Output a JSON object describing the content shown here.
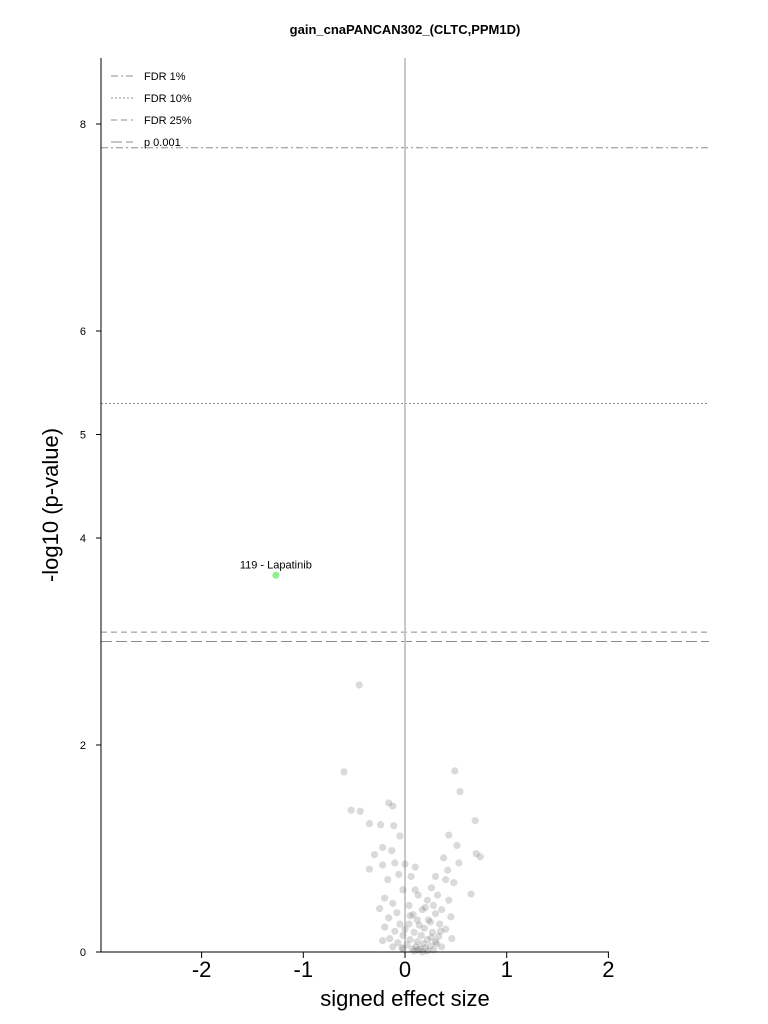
{
  "chart_data": {
    "type": "scatter",
    "title": "gain_cnaPANCAN302_(CLTC,PPM1D)",
    "xlabel": "signed effect size",
    "ylabel": "-log10 (p-value)",
    "xlim": [
      -2,
      2
    ],
    "ylim": [
      0,
      8
    ],
    "xticks": [
      -2,
      -1,
      0,
      1,
      2
    ],
    "xtick_labels": [
      "-2",
      "-1",
      "0",
      "1",
      "2"
    ],
    "yticks": [
      0,
      2,
      4,
      5,
      6,
      8
    ],
    "ytick_labels": [
      "0",
      "2",
      "4",
      "5",
      "6",
      "8"
    ],
    "legend_position": "top-left",
    "thresholds": [
      {
        "label": "FDR 1%",
        "y": 7.77,
        "style": "dashdot"
      },
      {
        "label": "FDR 10%",
        "y": 5.3,
        "style": "dotted"
      },
      {
        "label": "FDR 25%",
        "y": 3.09,
        "style": "dashed"
      },
      {
        "label": "p 0.001",
        "y": 3.0,
        "style": "longdash"
      }
    ],
    "highlight": {
      "label": "119 - Lapatinib",
      "x": -1.27,
      "y": 3.64,
      "color": "#90ee90"
    },
    "point_color": "#555555",
    "points": [
      [
        -0.45,
        2.58
      ],
      [
        -0.6,
        1.74
      ],
      [
        0.49,
        1.75
      ],
      [
        0.54,
        1.55
      ],
      [
        -0.53,
        1.37
      ],
      [
        -0.44,
        1.36
      ],
      [
        -0.16,
        1.44
      ],
      [
        -0.12,
        1.41
      ],
      [
        -0.35,
        1.24
      ],
      [
        -0.24,
        1.23
      ],
      [
        -0.11,
        1.22
      ],
      [
        0.69,
        1.27
      ],
      [
        0.43,
        1.13
      ],
      [
        0.51,
        1.03
      ],
      [
        -0.05,
        1.12
      ],
      [
        0.7,
        0.95
      ],
      [
        -0.22,
        1.01
      ],
      [
        -0.3,
        0.94
      ],
      [
        -0.13,
        0.98
      ],
      [
        0.74,
        0.92
      ],
      [
        0.38,
        0.91
      ],
      [
        0.53,
        0.86
      ],
      [
        -0.22,
        0.84
      ],
      [
        -0.1,
        0.86
      ],
      [
        0.0,
        0.85
      ],
      [
        0.1,
        0.82
      ],
      [
        -0.35,
        0.8
      ],
      [
        0.42,
        0.79
      ],
      [
        -0.06,
        0.75
      ],
      [
        0.06,
        0.73
      ],
      [
        0.3,
        0.73
      ],
      [
        -0.17,
        0.7
      ],
      [
        0.4,
        0.7
      ],
      [
        0.48,
        0.67
      ],
      [
        0.26,
        0.62
      ],
      [
        -0.02,
        0.6
      ],
      [
        0.13,
        0.55
      ],
      [
        0.32,
        0.55
      ],
      [
        0.65,
        0.56
      ],
      [
        -0.2,
        0.52
      ],
      [
        0.22,
        0.5
      ],
      [
        -0.12,
        0.47
      ],
      [
        0.43,
        0.5
      ],
      [
        0.04,
        0.45
      ],
      [
        0.28,
        0.45
      ],
      [
        -0.25,
        0.42
      ],
      [
        0.17,
        0.41
      ],
      [
        0.36,
        0.41
      ],
      [
        -0.08,
        0.38
      ],
      [
        0.08,
        0.36
      ],
      [
        0.3,
        0.37
      ],
      [
        -0.16,
        0.33
      ],
      [
        0.45,
        0.34
      ],
      [
        0.12,
        0.31
      ],
      [
        0.25,
        0.29
      ],
      [
        -0.05,
        0.27
      ],
      [
        0.04,
        0.27
      ],
      [
        0.34,
        0.27
      ],
      [
        -0.2,
        0.24
      ],
      [
        0.19,
        0.23
      ],
      [
        0.4,
        0.22
      ],
      [
        -0.1,
        0.2
      ],
      [
        0.09,
        0.19
      ],
      [
        0.27,
        0.19
      ],
      [
        -0.02,
        0.16
      ],
      [
        0.16,
        0.16
      ],
      [
        0.33,
        0.15
      ],
      [
        -0.15,
        0.13
      ],
      [
        0.05,
        0.12
      ],
      [
        0.22,
        0.12
      ],
      [
        0.12,
        0.1
      ],
      [
        0.3,
        0.1
      ],
      [
        -0.07,
        0.09
      ],
      [
        0.18,
        0.08
      ],
      [
        0.02,
        0.07
      ],
      [
        0.25,
        0.06
      ],
      [
        0.11,
        0.05
      ],
      [
        -0.03,
        0.04
      ],
      [
        0.2,
        0.04
      ],
      [
        0.15,
        0.03
      ],
      [
        0.07,
        0.03
      ],
      [
        0.28,
        0.02
      ],
      [
        0.13,
        0.02
      ],
      [
        0.22,
        0.01
      ],
      [
        0.09,
        0.01
      ],
      [
        0.17,
        0.0
      ],
      [
        -0.12,
        0.05
      ],
      [
        0.36,
        0.05
      ],
      [
        0.46,
        0.13
      ],
      [
        -0.22,
        0.11
      ],
      [
        0.0,
        0.22
      ],
      [
        0.23,
        0.31
      ],
      [
        0.14,
        0.26
      ],
      [
        0.35,
        0.2
      ],
      [
        0.05,
        0.35
      ],
      [
        0.2,
        0.43
      ],
      [
        0.1,
        0.6
      ],
      [
        -0.02,
        0.03
      ],
      [
        0.26,
        0.14
      ],
      [
        0.31,
        0.08
      ]
    ]
  }
}
